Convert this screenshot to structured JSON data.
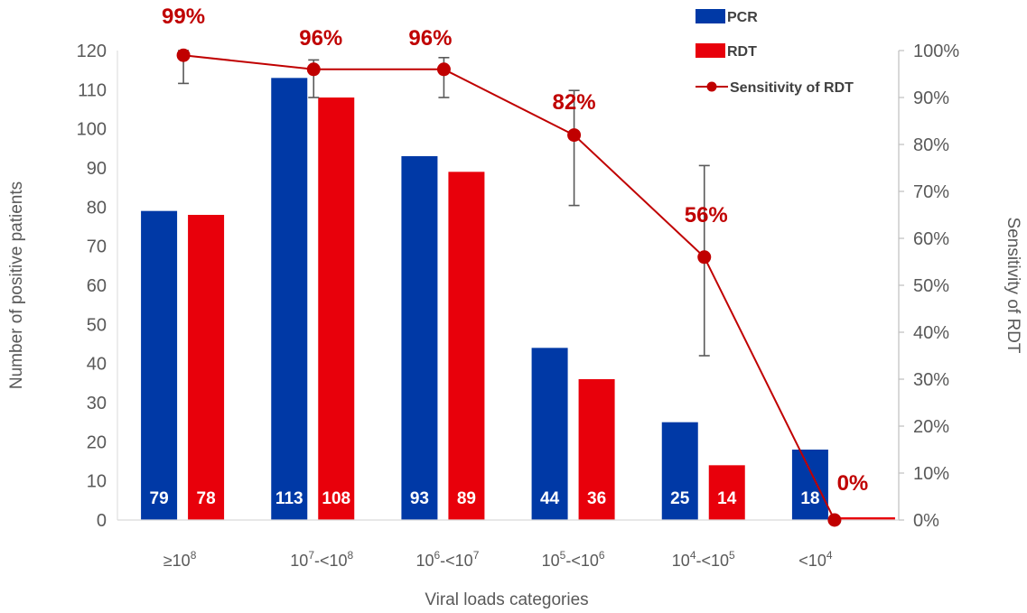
{
  "chart_data": {
    "type": "bar",
    "categories": [
      "≥10",
      "10-<10",
      "10-<10",
      "10-<10",
      "10-<10",
      "<10"
    ],
    "category_parts": [
      {
        "base1": "≥10",
        "sup1": "8",
        "mid": "",
        "sup2": ""
      },
      {
        "base1": "10",
        "sup1": "7",
        "mid": "-<10",
        "sup2": "8"
      },
      {
        "base1": "10",
        "sup1": "6",
        "mid": "-<10",
        "sup2": "7"
      },
      {
        "base1": "10",
        "sup1": "5",
        "mid": "-<10",
        "sup2": "6"
      },
      {
        "base1": "10",
        "sup1": "4",
        "mid": "-<10",
        "sup2": "5"
      },
      {
        "base1": "<10",
        "sup1": "4",
        "mid": "",
        "sup2": ""
      }
    ],
    "series": [
      {
        "name": "PCR",
        "kind": "bar",
        "axis": "left",
        "color": "#0039a6",
        "values": [
          79,
          113,
          93,
          44,
          25,
          18
        ]
      },
      {
        "name": "RDT",
        "kind": "bar",
        "axis": "left",
        "color": "#e8000b",
        "values": [
          78,
          108,
          89,
          36,
          14,
          0
        ]
      },
      {
        "name": "Sensitivity of RDT",
        "kind": "line",
        "axis": "right",
        "color": "#c00000",
        "values": [
          0.99,
          0.96,
          0.96,
          0.82,
          0.56,
          0.0
        ],
        "error_low": [
          0.93,
          0.9,
          0.9,
          0.67,
          0.35,
          0.0
        ],
        "error_high": [
          1.0,
          0.98,
          0.985,
          0.915,
          0.755,
          0.0
        ]
      }
    ],
    "bar_labels": {
      "PCR": [
        "79",
        "113",
        "93",
        "44",
        "25",
        "18"
      ],
      "RDT": [
        "78",
        "108",
        "89",
        "36",
        "14",
        "0"
      ]
    },
    "line_labels": [
      "99%",
      "96%",
      "96%",
      "82%",
      "56%",
      "0%"
    ],
    "xlabel": "Viral loads categories",
    "ylabel": "Number of positive patients",
    "y2label": "Sensitivity of RDT",
    "ylim": [
      0,
      120
    ],
    "yticks": [
      "0",
      "10",
      "20",
      "30",
      "40",
      "50",
      "60",
      "70",
      "80",
      "90",
      "100",
      "110",
      "120"
    ],
    "y2lim": [
      0,
      1
    ],
    "y2ticks": [
      "0%",
      "10%",
      "20%",
      "30%",
      "40%",
      "50%",
      "60%",
      "70%",
      "80%",
      "90%",
      "100%"
    ],
    "grid": false,
    "legend_position": "top-right"
  }
}
